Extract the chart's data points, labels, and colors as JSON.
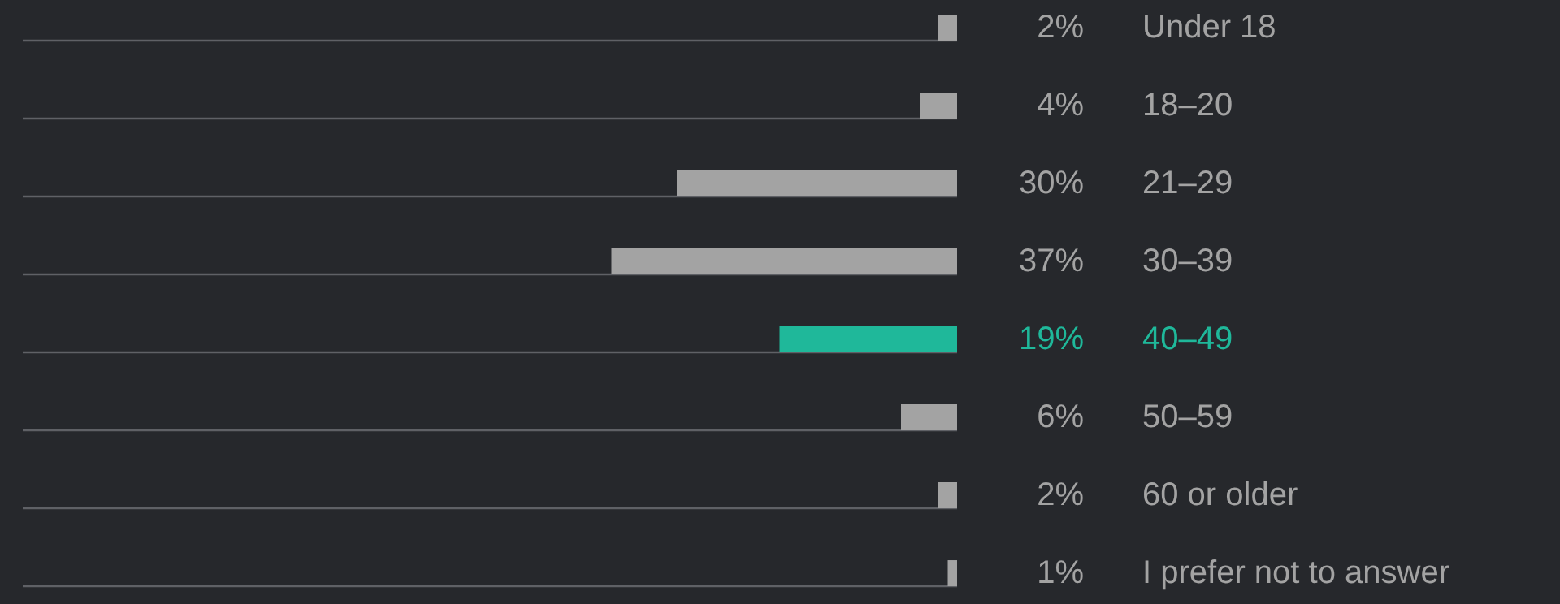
{
  "chart_data": {
    "type": "bar",
    "orientation": "horizontal",
    "categories": [
      "Under 18",
      "18–20",
      "21–29",
      "30–39",
      "40–49",
      "50–59",
      "60 or older",
      "I prefer not to answer"
    ],
    "values": [
      2,
      4,
      30,
      37,
      19,
      6,
      2,
      1
    ],
    "value_labels": [
      "2%",
      "4%",
      "30%",
      "37%",
      "19%",
      "6%",
      "2%",
      "1%"
    ],
    "colors": [
      "#a3a3a3",
      "#a3a3a3",
      "#a3a3a3",
      "#a3a3a3",
      "#1fb89a",
      "#a3a3a3",
      "#a3a3a3",
      "#a3a3a3"
    ],
    "xlim": [
      100,
      0
    ],
    "grid": "y"
  }
}
